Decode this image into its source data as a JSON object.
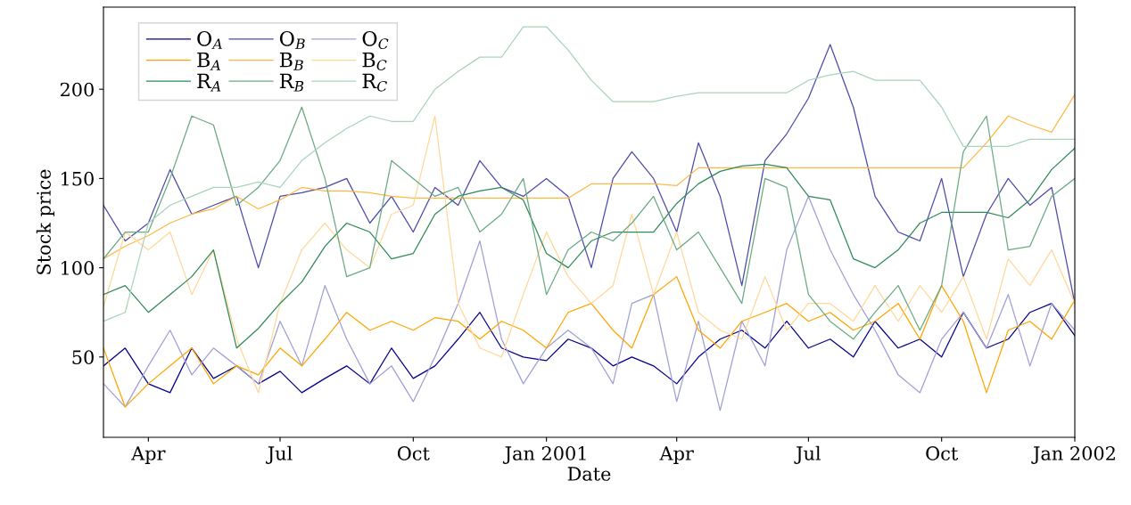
{
  "chart_data": {
    "type": "line",
    "xlabel": "Date",
    "ylabel": "Stock price",
    "x": [
      "2000-03-01",
      "2000-03-16",
      "2000-04-01",
      "2000-04-16",
      "2000-05-01",
      "2000-05-16",
      "2000-06-01",
      "2000-06-16",
      "2000-07-01",
      "2000-07-16",
      "2000-08-01",
      "2000-08-16",
      "2000-09-01",
      "2000-09-16",
      "2000-10-01",
      "2000-10-16",
      "2000-11-01",
      "2000-11-16",
      "2000-12-01",
      "2000-12-16",
      "2001-01-01",
      "2001-01-16",
      "2001-02-01",
      "2001-02-16",
      "2001-03-01",
      "2001-03-16",
      "2001-04-01",
      "2001-04-16",
      "2001-05-01",
      "2001-05-16",
      "2001-06-01",
      "2001-06-16",
      "2001-07-01",
      "2001-07-16",
      "2001-08-01",
      "2001-08-16",
      "2001-09-01",
      "2001-09-16",
      "2001-10-01",
      "2001-10-16",
      "2001-11-01",
      "2001-11-16",
      "2001-12-01",
      "2001-12-16",
      "2002-01-01"
    ],
    "series": [
      {
        "name": "O$_{A}$",
        "color": "#00008b",
        "values": [
          45,
          55,
          35,
          30,
          55,
          38,
          45,
          35,
          42,
          30,
          38,
          45,
          35,
          55,
          38,
          45,
          60,
          75,
          55,
          50,
          48,
          60,
          55,
          45,
          50,
          45,
          35,
          50,
          60,
          65,
          55,
          70,
          55,
          60,
          50,
          70,
          55,
          60,
          50,
          75,
          55,
          60,
          75,
          80,
          62
        ]
      },
      {
        "name": "O$_{B}$",
        "color": "#4b4bab",
        "values": [
          135,
          115,
          125,
          155,
          130,
          135,
          140,
          100,
          140,
          142,
          145,
          150,
          125,
          140,
          120,
          145,
          135,
          160,
          145,
          140,
          150,
          140,
          100,
          150,
          165,
          150,
          120,
          170,
          140,
          90,
          160,
          175,
          195,
          225,
          190,
          140,
          120,
          115,
          150,
          95,
          130,
          150,
          135,
          145,
          80
        ]
      },
      {
        "name": "O$_{C}$",
        "color": "#9f9fd6",
        "values": [
          35,
          22,
          45,
          65,
          40,
          55,
          45,
          35,
          70,
          45,
          90,
          60,
          35,
          45,
          25,
          50,
          80,
          115,
          60,
          35,
          55,
          65,
          55,
          35,
          80,
          85,
          25,
          70,
          20,
          70,
          45,
          110,
          140,
          110,
          85,
          65,
          40,
          30,
          60,
          75,
          55,
          85,
          45,
          80,
          65
        ]
      },
      {
        "name": "B$_{A}$",
        "color": "#ffa500",
        "values": [
          55,
          22,
          35,
          45,
          55,
          35,
          45,
          40,
          55,
          45,
          60,
          75,
          65,
          70,
          65,
          72,
          70,
          60,
          70,
          65,
          55,
          75,
          80,
          65,
          55,
          85,
          95,
          65,
          55,
          70,
          75,
          80,
          70,
          75,
          65,
          70,
          80,
          60,
          90,
          70,
          30,
          65,
          70,
          60,
          82
        ]
      },
      {
        "name": "B$_{B}$",
        "color": "#ffb940",
        "values": [
          105,
          112,
          118,
          125,
          130,
          133,
          140,
          133,
          138,
          145,
          143,
          143,
          142,
          140,
          139,
          139,
          139,
          139,
          139,
          139,
          139,
          139,
          147,
          147,
          147,
          147,
          146,
          156,
          156,
          156,
          156,
          156,
          156,
          156,
          156,
          156,
          156,
          156,
          156,
          156,
          170,
          185,
          180,
          176,
          197
        ]
      },
      {
        "name": "B$_{C}$",
        "color": "#ffd899",
        "values": [
          78,
          120,
          110,
          120,
          85,
          110,
          60,
          30,
          80,
          110,
          125,
          110,
          100,
          130,
          135,
          185,
          80,
          55,
          50,
          85,
          120,
          95,
          80,
          90,
          130,
          85,
          120,
          75,
          65,
          60,
          95,
          65,
          80,
          80,
          70,
          90,
          70,
          90,
          75,
          95,
          60,
          105,
          90,
          110,
          80
        ]
      },
      {
        "name": "R$_{A}$",
        "color": "#2e8b57",
        "values": [
          85,
          90,
          75,
          85,
          95,
          110,
          55,
          66,
          80,
          92,
          112,
          125,
          120,
          105,
          108,
          130,
          140,
          143,
          145,
          138,
          108,
          100,
          115,
          120,
          120,
          120,
          136,
          147,
          154,
          157,
          158,
          156,
          140,
          138,
          105,
          100,
          110,
          125,
          131,
          131,
          131,
          128,
          138,
          155,
          167
        ]
      },
      {
        "name": "R$_{B}$",
        "color": "#6aaa83",
        "values": [
          105,
          120,
          120,
          150,
          185,
          180,
          135,
          145,
          160,
          190,
          150,
          95,
          100,
          160,
          150,
          140,
          145,
          120,
          130,
          150,
          85,
          110,
          120,
          115,
          125,
          140,
          110,
          120,
          100,
          80,
          150,
          145,
          85,
          70,
          60,
          75,
          90,
          65,
          90,
          165,
          185,
          110,
          112,
          140,
          150
        ]
      },
      {
        "name": "R$_{C}$",
        "color": "#a9d4b9",
        "values": [
          70,
          75,
          125,
          135,
          140,
          145,
          145,
          148,
          145,
          160,
          170,
          178,
          185,
          182,
          182,
          200,
          210,
          218,
          218,
          235,
          235,
          222,
          205,
          193,
          193,
          193,
          196,
          198,
          198,
          198,
          198,
          198,
          205,
          208,
          210,
          205,
          205,
          205,
          190,
          168,
          168,
          168,
          172,
          172,
          172
        ]
      }
    ],
    "xlim": [
      "2000-03-01",
      "2002-01-01"
    ],
    "xticks": [
      {
        "value": "2000-04-01",
        "label": "Apr"
      },
      {
        "value": "2000-07-01",
        "label": "Jul"
      },
      {
        "value": "2000-10-01",
        "label": "Oct"
      },
      {
        "value": "2001-01-01",
        "label": "Jan 2001"
      },
      {
        "value": "2001-04-01",
        "label": "Apr"
      },
      {
        "value": "2001-07-01",
        "label": "Jul"
      },
      {
        "value": "2001-10-01",
        "label": "Oct"
      },
      {
        "value": "2002-01-01",
        "label": "Jan 2002"
      }
    ],
    "ylim": [
      5,
      246
    ],
    "yticks": [
      50,
      100,
      150,
      200
    ],
    "grid": false,
    "legend": "top left",
    "line_style": "solid"
  }
}
